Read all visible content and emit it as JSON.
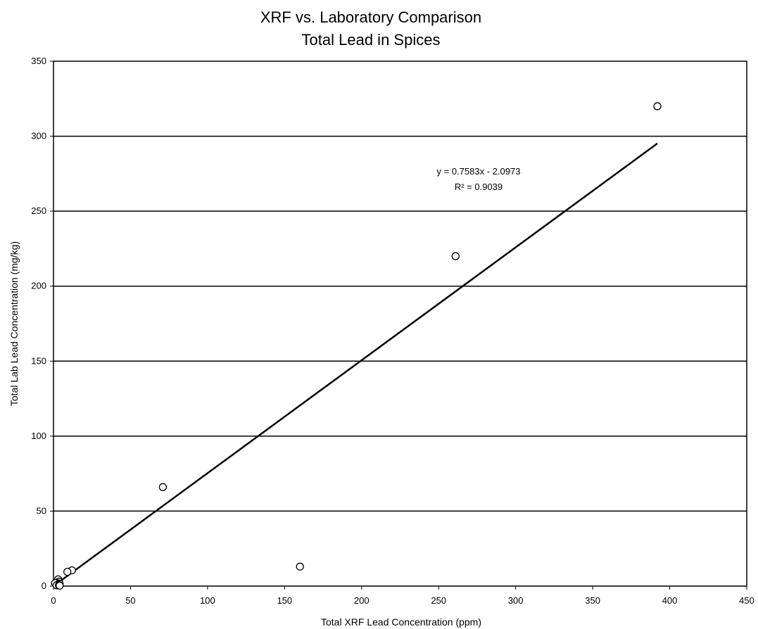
{
  "chart_data": {
    "type": "scatter",
    "title": "XRF vs. Laboratory Comparison",
    "subtitle": "Total Lead in Spices",
    "xlabel": "Total  XRF Lead Concentration (ppm)",
    "ylabel": "Total  Lab Lead Concentration (mg/kg)",
    "xlim": [
      0,
      450
    ],
    "ylim": [
      0,
      350
    ],
    "x_ticks": [
      0,
      50,
      100,
      150,
      200,
      250,
      300,
      350,
      400,
      450
    ],
    "y_ticks": [
      0,
      50,
      100,
      150,
      200,
      250,
      300,
      350
    ],
    "grid": "horizontal",
    "legend": "none",
    "series": [
      {
        "points": [
          {
            "x": 392,
            "y": 320
          },
          {
            "x": 261,
            "y": 220
          },
          {
            "x": 71,
            "y": 66
          },
          {
            "x": 160,
            "y": 13
          },
          {
            "x": 12,
            "y": 10.5
          },
          {
            "x": 9,
            "y": 9.5
          },
          {
            "x": 3,
            "y": 4.5
          },
          {
            "x": 3.5,
            "y": 3
          },
          {
            "x": 2.5,
            "y": 2
          },
          {
            "x": 1,
            "y": 2
          },
          {
            "x": 4,
            "y": 1.5
          },
          {
            "x": 3,
            "y": 1
          },
          {
            "x": 2,
            "y": 0.5
          },
          {
            "x": 3.5,
            "y": 0.5
          },
          {
            "x": 4,
            "y": 0.3
          }
        ]
      }
    ],
    "trendline": {
      "slope": 0.7583,
      "intercept": -2.0973,
      "x_range": [
        0,
        392
      ],
      "equation": "y = 0.7583x - 2.0973",
      "r_squared": "R² = 0.9039"
    },
    "colors": {
      "line": "#000000",
      "marker_stroke": "#000000",
      "marker_fill": "#ffffff",
      "grid": "#000000"
    }
  }
}
